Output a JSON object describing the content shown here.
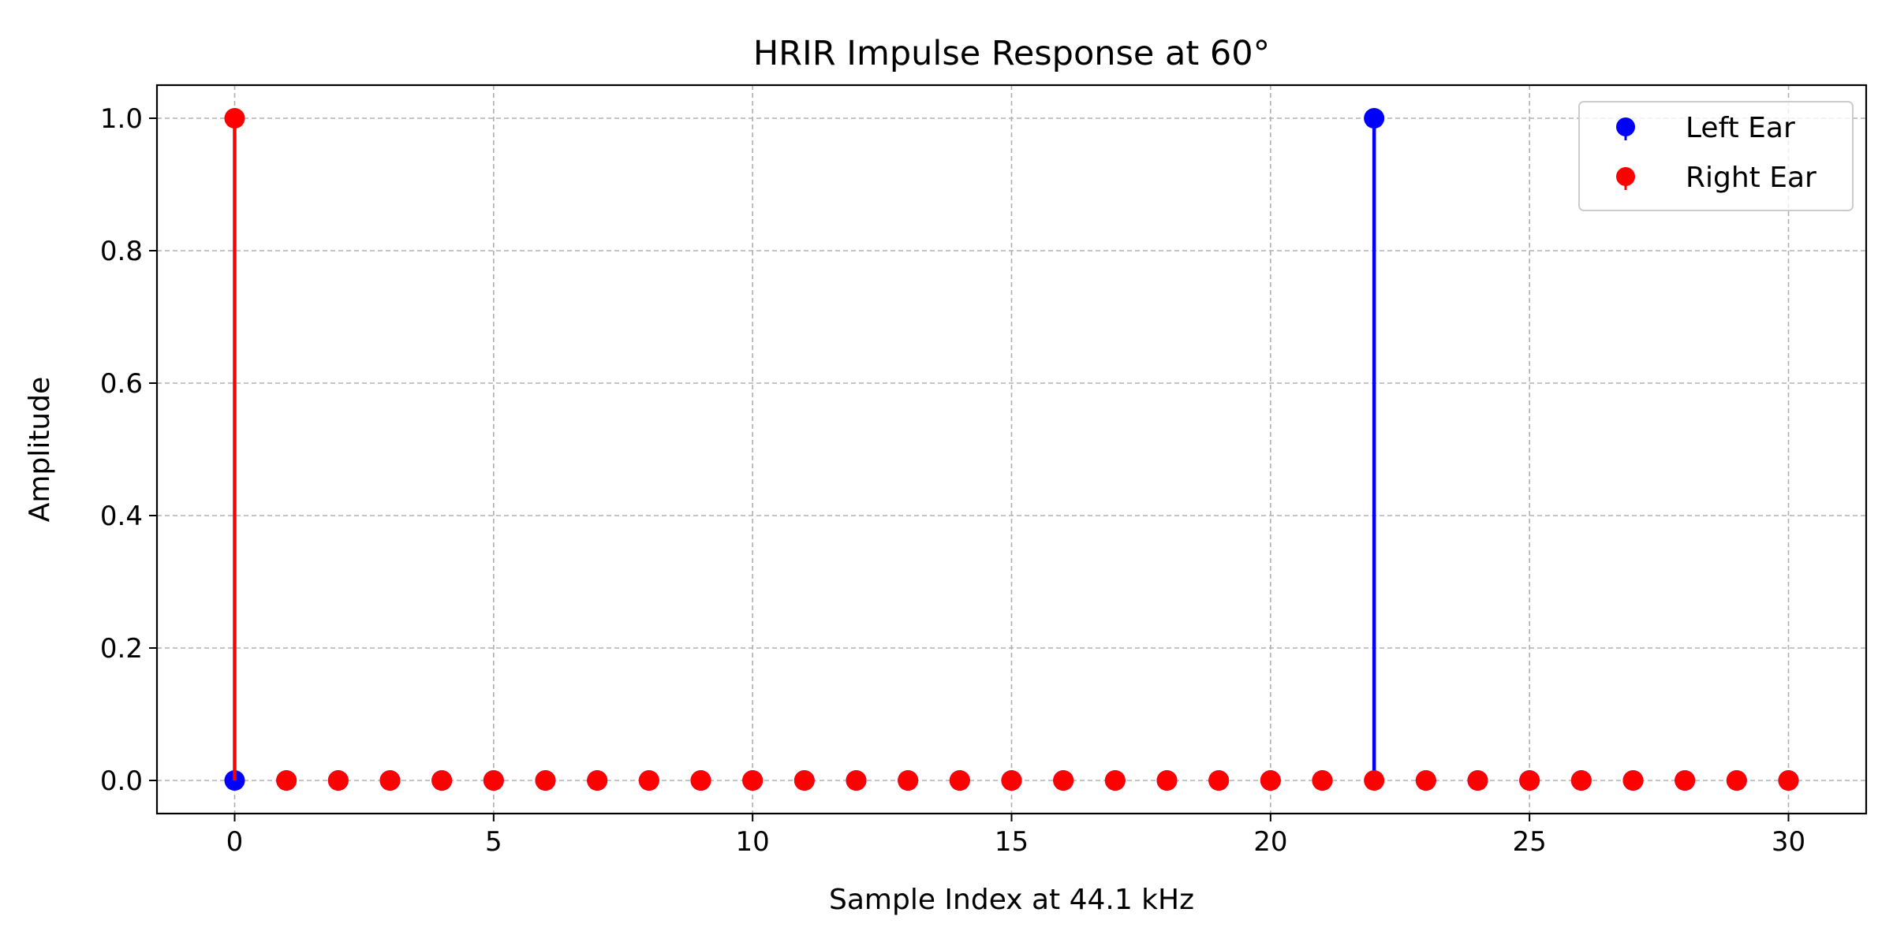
{
  "chart_data": {
    "type": "stem",
    "title": "HRIR Impulse Response at 60°",
    "xlabel": "Sample Index at 44.1 kHz",
    "ylabel": "Amplitude",
    "xlim": [
      -1.5,
      31.5
    ],
    "ylim": [
      -0.05,
      1.05
    ],
    "xticks": [
      0,
      5,
      10,
      15,
      20,
      25,
      30
    ],
    "xtick_labels": [
      "0",
      "5",
      "10",
      "15",
      "20",
      "25",
      "30"
    ],
    "yticks": [
      0.0,
      0.2,
      0.4,
      0.6,
      0.8,
      1.0
    ],
    "ytick_labels": [
      "0.0",
      "0.2",
      "0.4",
      "0.6",
      "0.8",
      "1.0"
    ],
    "grid": true,
    "legend_position": "top-right",
    "x": [
      0,
      1,
      2,
      3,
      4,
      5,
      6,
      7,
      8,
      9,
      10,
      11,
      12,
      13,
      14,
      15,
      16,
      17,
      18,
      19,
      20,
      21,
      22,
      23,
      24,
      25,
      26,
      27,
      28,
      29,
      30
    ],
    "series": [
      {
        "name": "Left Ear",
        "color": "#0000ff",
        "values": [
          0,
          0,
          0,
          0,
          0,
          0,
          0,
          0,
          0,
          0,
          0,
          0,
          0,
          0,
          0,
          0,
          0,
          0,
          0,
          0,
          0,
          0,
          1,
          0,
          0,
          0,
          0,
          0,
          0,
          0,
          0
        ]
      },
      {
        "name": "Right Ear",
        "color": "#ff0000",
        "values": [
          1,
          0,
          0,
          0,
          0,
          0,
          0,
          0,
          0,
          0,
          0,
          0,
          0,
          0,
          0,
          0,
          0,
          0,
          0,
          0,
          0,
          0,
          0,
          0,
          0,
          0,
          0,
          0,
          0,
          0,
          0
        ]
      }
    ]
  }
}
